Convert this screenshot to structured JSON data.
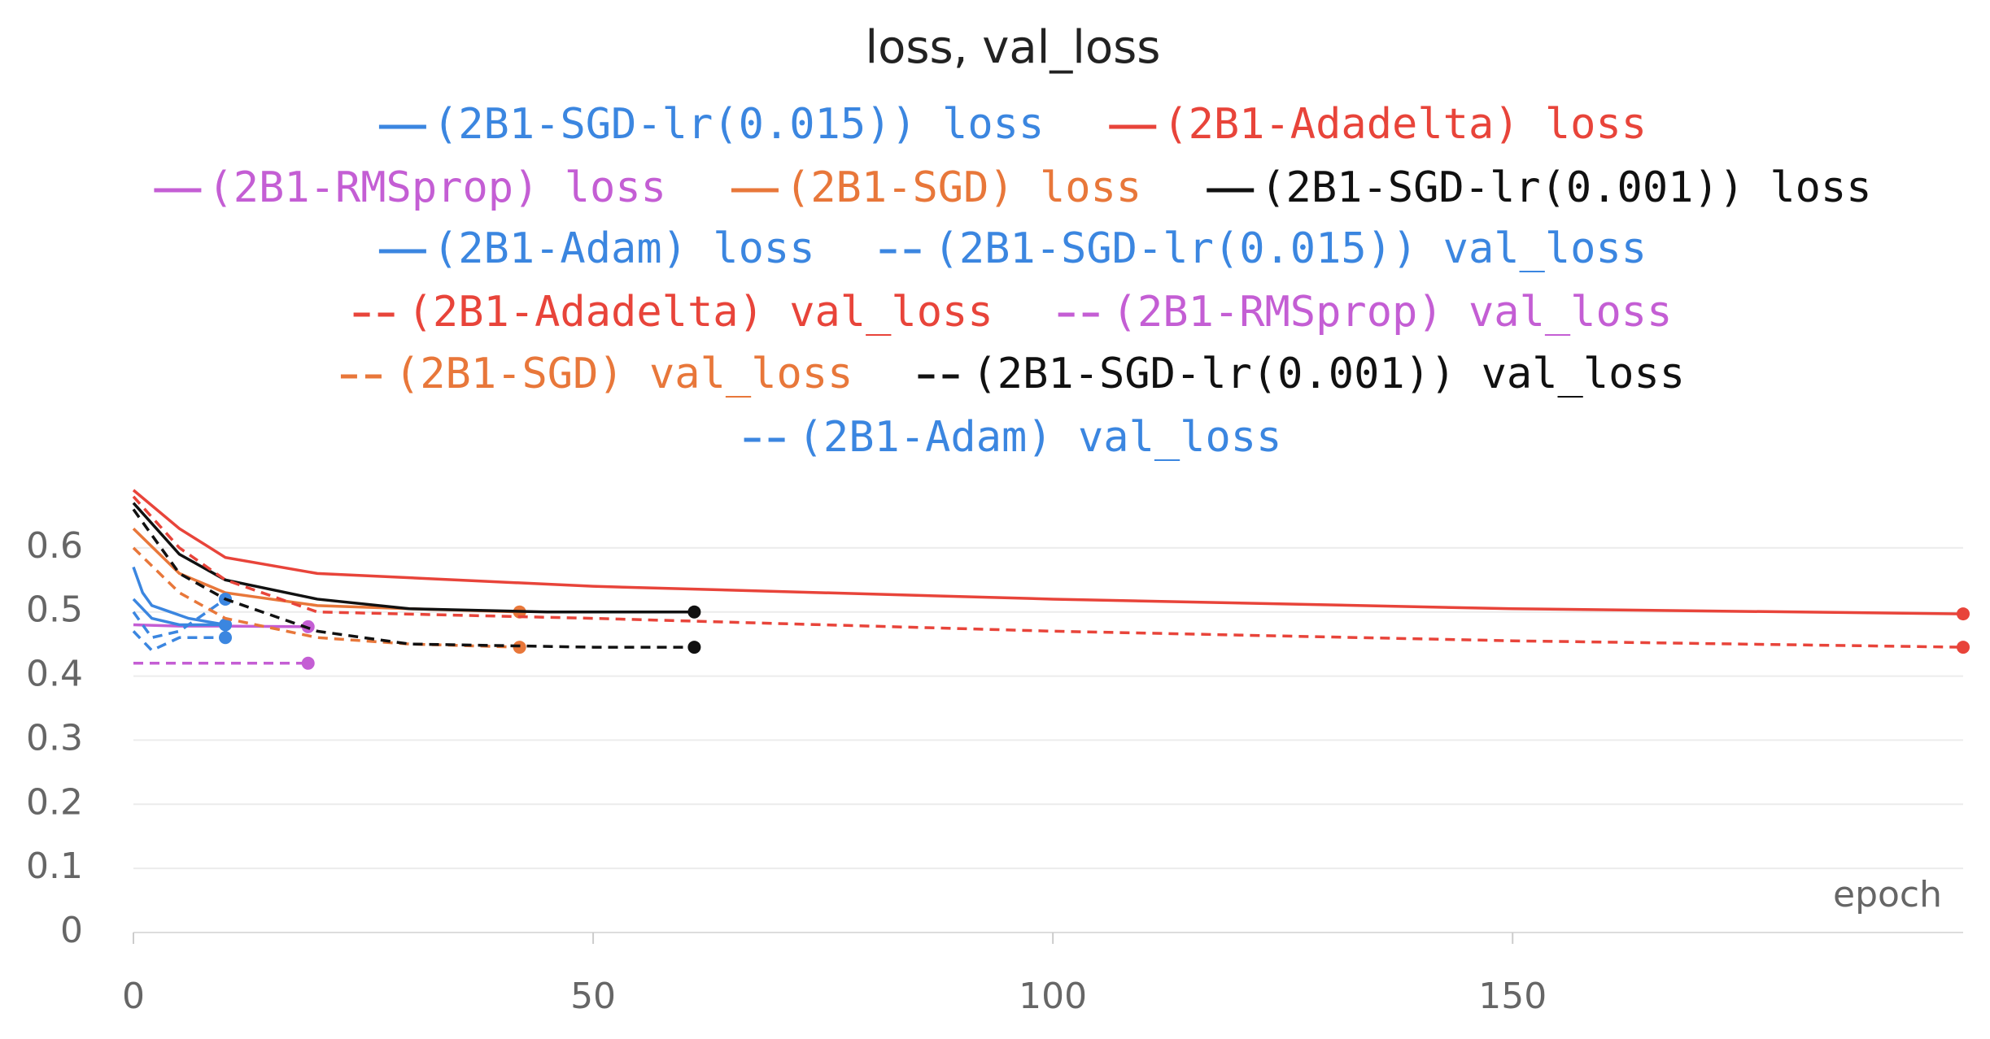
{
  "chart_data": {
    "type": "line",
    "title": "loss, val_loss",
    "x_label": "epoch",
    "xlim": [
      0,
      199
    ],
    "xticks": [
      0,
      50,
      100,
      150
    ],
    "ylim": [
      0,
      0.7
    ],
    "yticks": [
      0,
      0.1,
      0.2,
      0.3,
      0.4,
      0.5,
      0.6
    ],
    "grid": true,
    "series": [
      {
        "name": "(2B1-SGD-lr(0.015)) loss",
        "color": "#3b86e0",
        "dash": false,
        "x": [
          0,
          1,
          2,
          4,
          6,
          8,
          10
        ],
        "values": [
          0.57,
          0.53,
          0.51,
          0.5,
          0.49,
          0.485,
          0.48
        ]
      },
      {
        "name": "(2B1-Adadelta) loss",
        "color": "#e8443a",
        "dash": false,
        "x": [
          0,
          5,
          10,
          20,
          50,
          100,
          150,
          199
        ],
        "values": [
          0.69,
          0.63,
          0.585,
          0.56,
          0.54,
          0.52,
          0.505,
          0.497
        ]
      },
      {
        "name": "(2B1-RMSprop) loss",
        "color": "#c45ed4",
        "dash": false,
        "x": [
          0,
          5,
          10,
          19
        ],
        "values": [
          0.48,
          0.478,
          0.478,
          0.477
        ]
      },
      {
        "name": "(2B1-SGD) loss",
        "color": "#e8773a",
        "dash": false,
        "x": [
          0,
          5,
          10,
          20,
          30,
          42
        ],
        "values": [
          0.63,
          0.56,
          0.53,
          0.51,
          0.505,
          0.5
        ]
      },
      {
        "name": "(2B1-SGD-lr(0.001)) loss",
        "color": "#111111",
        "dash": false,
        "x": [
          0,
          5,
          10,
          20,
          30,
          45,
          61
        ],
        "values": [
          0.67,
          0.59,
          0.55,
          0.52,
          0.505,
          0.5,
          0.5
        ]
      },
      {
        "name": "(2B1-Adam) loss",
        "color": "#3b86e0",
        "dash": false,
        "x": [
          0,
          2,
          5,
          10
        ],
        "values": [
          0.52,
          0.49,
          0.48,
          0.48
        ]
      },
      {
        "name": "(2B1-SGD-lr(0.015)) val_loss",
        "color": "#3b86e0",
        "dash": true,
        "x": [
          0,
          2,
          5,
          8,
          10
        ],
        "values": [
          0.5,
          0.46,
          0.47,
          0.5,
          0.52
        ]
      },
      {
        "name": "(2B1-Adadelta) val_loss",
        "color": "#e8443a",
        "dash": true,
        "x": [
          0,
          5,
          10,
          20,
          50,
          100,
          150,
          199
        ],
        "values": [
          0.68,
          0.6,
          0.55,
          0.5,
          0.49,
          0.47,
          0.455,
          0.445
        ]
      },
      {
        "name": "(2B1-RMSprop) val_loss",
        "color": "#c45ed4",
        "dash": true,
        "x": [
          0,
          5,
          10,
          19
        ],
        "values": [
          0.42,
          0.42,
          0.42,
          0.42
        ]
      },
      {
        "name": "(2B1-SGD) val_loss",
        "color": "#e8773a",
        "dash": true,
        "x": [
          0,
          5,
          10,
          20,
          30,
          42
        ],
        "values": [
          0.6,
          0.53,
          0.49,
          0.46,
          0.45,
          0.445
        ]
      },
      {
        "name": "(2B1-SGD-lr(0.001)) val_loss",
        "color": "#111111",
        "dash": true,
        "x": [
          0,
          5,
          10,
          20,
          30,
          50,
          61
        ],
        "values": [
          0.66,
          0.56,
          0.52,
          0.47,
          0.45,
          0.445,
          0.445
        ]
      },
      {
        "name": "(2B1-Adam) val_loss",
        "color": "#3b86e0",
        "dash": true,
        "x": [
          0,
          2,
          5,
          10
        ],
        "values": [
          0.47,
          0.44,
          0.46,
          0.46
        ]
      }
    ]
  }
}
